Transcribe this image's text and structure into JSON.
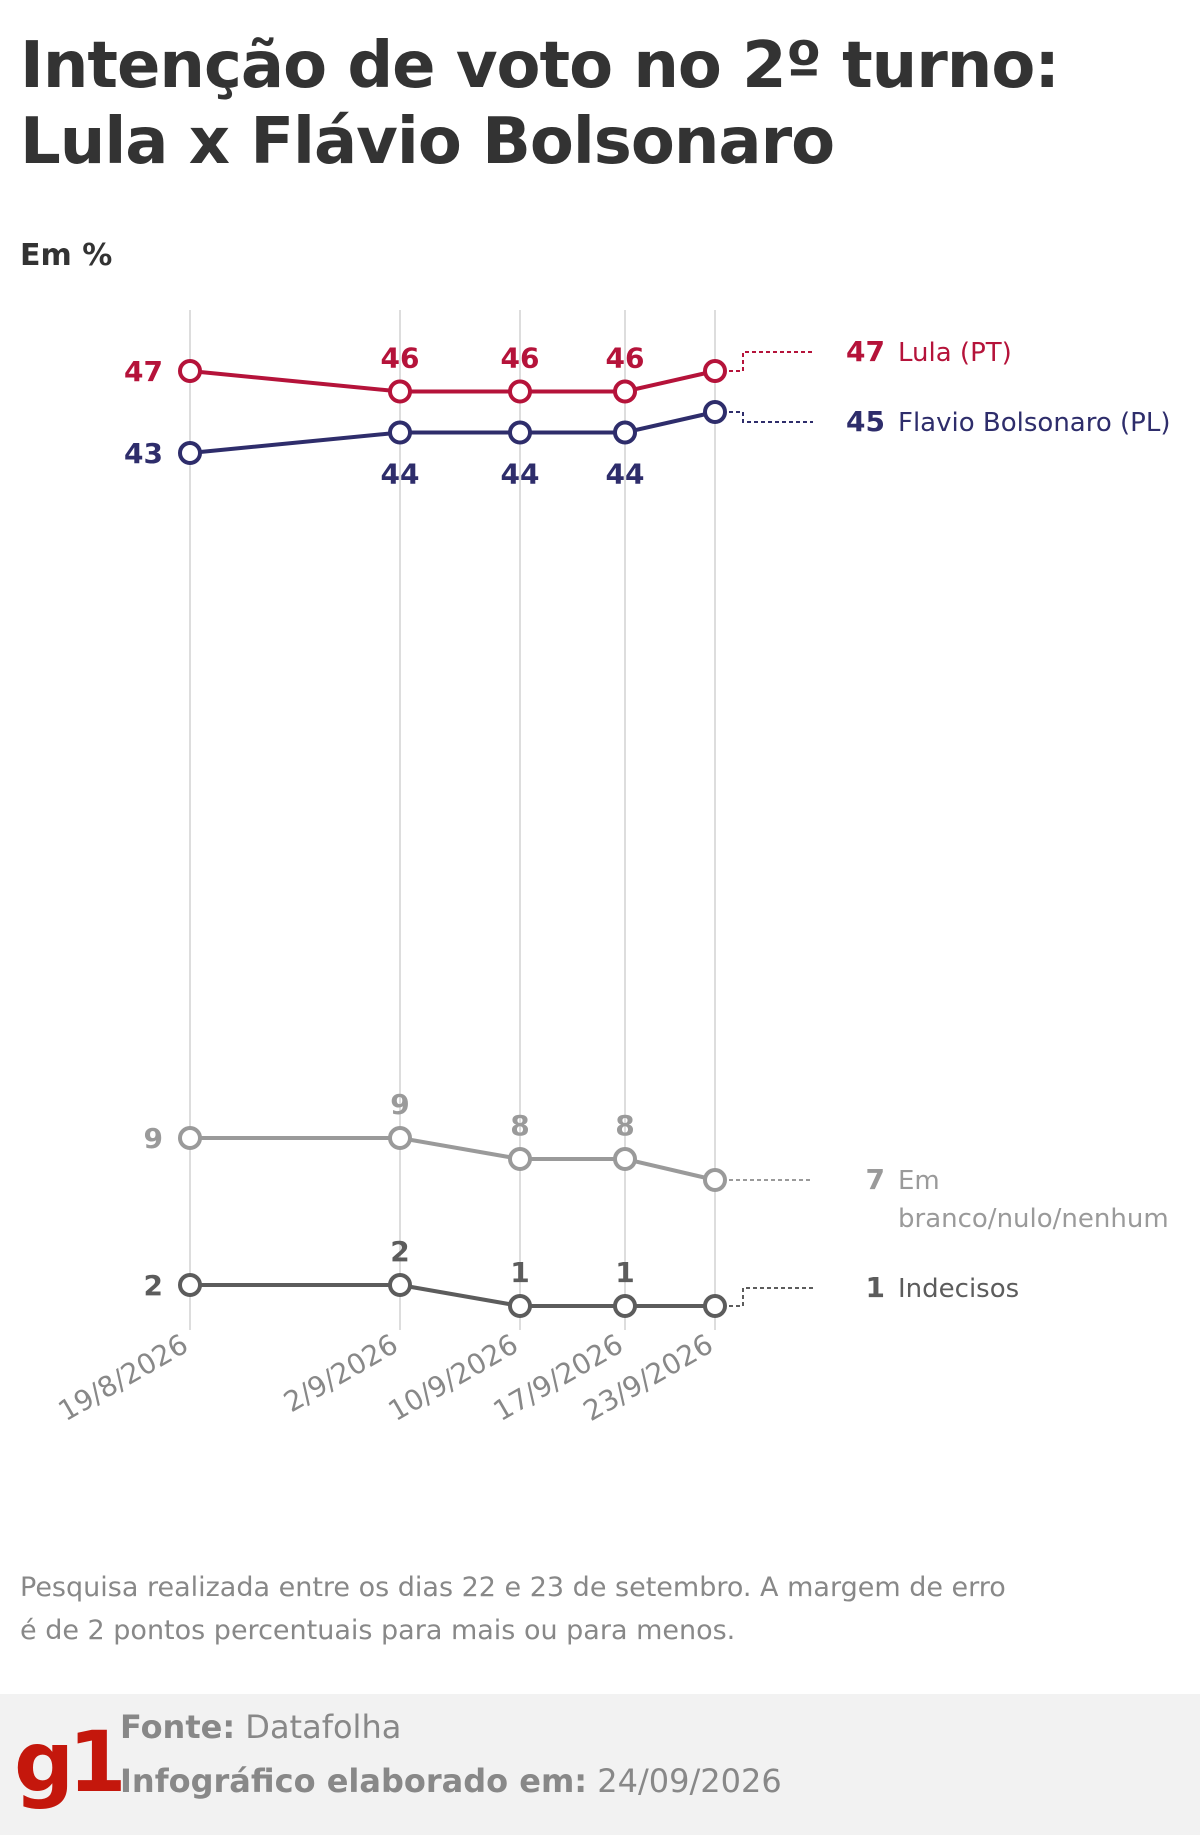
{
  "title": "Intenção de voto no 2º turno: Lula x Flávio Bolsonaro",
  "unit_label": "Em %",
  "note": "Pesquisa realizada entre os dias 22 e 23 de setembro. A margem de erro é de 2 pontos percentuais para mais ou para menos.",
  "footer": {
    "logo": "g1",
    "source_label": "Fonte:",
    "source_value": "Datafolha",
    "date_label": "Infográfico elaborado em:",
    "date_value": "24/09/2026"
  },
  "colors": {
    "lula": "#b5133a",
    "flavio": "#2e2d6b",
    "branco": "#9a9a9a",
    "indecisos": "#5c5c5c",
    "gridline": "#dddddd",
    "logo": "#c4170c"
  },
  "chart_data": {
    "type": "line",
    "x": [
      "19/8/2026",
      "2/9/2026",
      "10/9/2026",
      "17/9/2026",
      "23/9/2026"
    ],
    "y_unit": "%",
    "grid": "vertical",
    "series": [
      {
        "name": "Lula (PT)",
        "key": "lula",
        "values": [
          47,
          46,
          46,
          46,
          47
        ],
        "label_position": "above"
      },
      {
        "name": "Flavio Bolsonaro (PL)",
        "key": "flavio",
        "values": [
          43,
          44,
          44,
          44,
          45
        ],
        "label_position": "below"
      },
      {
        "name": "Em branco/nulo/nenhum",
        "name_lines": [
          "Em",
          "branco/nulo/nenhum"
        ],
        "key": "branco",
        "values": [
          9,
          9,
          8,
          8,
          7
        ],
        "label_position": "above"
      },
      {
        "name": "Indecisos",
        "key": "indecisos",
        "values": [
          2,
          2,
          1,
          1,
          1
        ],
        "label_position": "above"
      }
    ]
  }
}
